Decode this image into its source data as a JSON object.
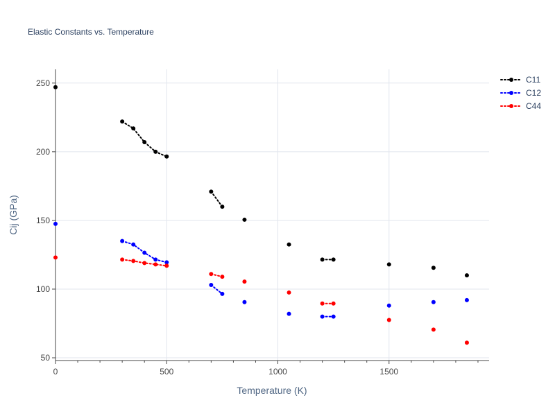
{
  "chart_data": {
    "type": "line",
    "title": "Elastic Constants vs. Temperature",
    "xlabel": "Temperature (K)",
    "ylabel": "Cij (GPa)",
    "xlim": [
      0,
      1950
    ],
    "ylim": [
      48,
      260
    ],
    "xticks": [
      0,
      500,
      1000,
      1500
    ],
    "xtick_labels": [
      "0",
      "500",
      "1000",
      "1500"
    ],
    "yticks": [
      50,
      100,
      150,
      200,
      250
    ],
    "ytick_labels": [
      "50",
      "100",
      "150",
      "200",
      "250"
    ],
    "grid": true,
    "legend_position": "top-right",
    "series": [
      {
        "name": "C11",
        "color": "#000000",
        "line_style": "dotted",
        "segments": [
          [
            [
              0,
              247
            ]
          ],
          [
            [
              300,
              222
            ],
            [
              350,
              217
            ],
            [
              400,
              207
            ],
            [
              450,
              200
            ],
            [
              500,
              196.5
            ]
          ],
          [
            [
              700,
              171
            ],
            [
              750,
              160
            ]
          ],
          [
            [
              850,
              150.5
            ]
          ],
          [
            [
              1050,
              132.5
            ]
          ],
          [
            [
              1200,
              121.5
            ],
            [
              1250,
              121.5
            ]
          ],
          [
            [
              1500,
              118
            ]
          ],
          [
            [
              1700,
              115.5
            ]
          ],
          [
            [
              1850,
              110
            ]
          ]
        ]
      },
      {
        "name": "C12",
        "color": "#0000ff",
        "line_style": "dotted",
        "segments": [
          [
            [
              0,
              147.5
            ]
          ],
          [
            [
              300,
              135
            ],
            [
              350,
              132.5
            ],
            [
              400,
              126.5
            ],
            [
              450,
              121.5
            ],
            [
              500,
              119.5
            ]
          ],
          [
            [
              700,
              103
            ],
            [
              750,
              96.5
            ]
          ],
          [
            [
              850,
              90.5
            ]
          ],
          [
            [
              1050,
              82
            ]
          ],
          [
            [
              1200,
              80
            ],
            [
              1250,
              80
            ]
          ],
          [
            [
              1500,
              88
            ]
          ],
          [
            [
              1700,
              90.5
            ]
          ],
          [
            [
              1850,
              92
            ]
          ]
        ]
      },
      {
        "name": "C44",
        "color": "#ff0000",
        "line_style": "dotted",
        "segments": [
          [
            [
              0,
              123
            ]
          ],
          [
            [
              300,
              121.5
            ],
            [
              350,
              120.5
            ],
            [
              400,
              119
            ],
            [
              450,
              118
            ],
            [
              500,
              117
            ]
          ],
          [
            [
              700,
              111
            ],
            [
              750,
              109
            ]
          ],
          [
            [
              850,
              105.5
            ]
          ],
          [
            [
              1050,
              97.5
            ]
          ],
          [
            [
              1200,
              89.5
            ],
            [
              1250,
              89.5
            ]
          ],
          [
            [
              1500,
              77.5
            ]
          ],
          [
            [
              1700,
              70.5
            ]
          ],
          [
            [
              1850,
              61
            ]
          ]
        ]
      }
    ]
  }
}
